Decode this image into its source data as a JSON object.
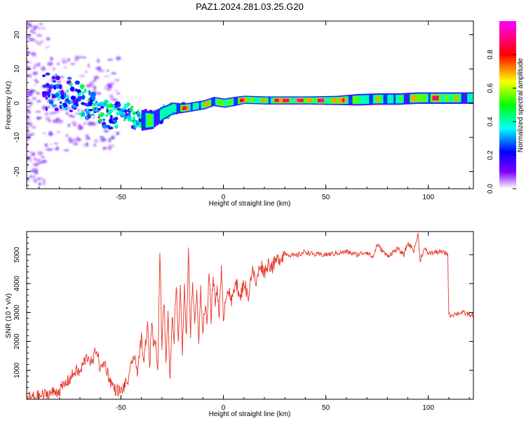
{
  "page_title": "PAZ1.2024.281.03.25.G20",
  "chart_data": [
    {
      "type": "heatmap",
      "title": "PAZ1.2024.281.03.25.G20",
      "xlabel": "Height of straight line (km)",
      "ylabel": "Frequency (Hz)",
      "xlim": [
        -96,
        122
      ],
      "ylim": [
        -25,
        24
      ],
      "x_ticks": [
        -50,
        0,
        50,
        100
      ],
      "y_ticks": [
        -20,
        -10,
        0,
        10,
        20
      ],
      "colorbar": {
        "label": "Normalized spectral amplitude",
        "range": [
          0,
          1
        ],
        "ticks": [
          "0.0",
          "0.2",
          "0.4",
          "0.6",
          "0.8"
        ],
        "tick_values": [
          0.0,
          0.2,
          0.4,
          0.6,
          0.8
        ],
        "colors": [
          "#ffffff",
          "#8000ff",
          "#0000ff",
          "#00ffff",
          "#00ff00",
          "#ffff00",
          "#ff0000",
          "#ff00ff"
        ]
      },
      "ridge": [
        {
          "x": -85,
          "f": 3.5,
          "amp": 0.2,
          "spread": 3.5
        },
        {
          "x": -80,
          "f": 3.0,
          "amp": 0.35,
          "spread": 3.0
        },
        {
          "x": -75,
          "f": 2.5,
          "amp": 0.4,
          "spread": 3.0
        },
        {
          "x": -70,
          "f": 1.0,
          "amp": 0.4,
          "spread": 3.0
        },
        {
          "x": -65,
          "f": -1.0,
          "amp": 0.45,
          "spread": 2.5
        },
        {
          "x": -60,
          "f": -2.5,
          "amp": 0.45,
          "spread": 2.5
        },
        {
          "x": -55,
          "f": -3.5,
          "amp": 0.45,
          "spread": 2.5
        },
        {
          "x": -50,
          "f": -3.0,
          "amp": 0.45,
          "spread": 2.0
        },
        {
          "x": -45,
          "f": -4.0,
          "amp": 0.45,
          "spread": 2.0
        },
        {
          "x": -40,
          "f": -5.0,
          "amp": 0.5,
          "spread": 1.8
        },
        {
          "x": -35,
          "f": -5.0,
          "amp": 0.5,
          "spread": 1.5
        },
        {
          "x": -30,
          "f": -3.0,
          "amp": 0.5,
          "spread": 1.2
        },
        {
          "x": -25,
          "f": -1.5,
          "amp": 0.55,
          "spread": 1.0
        },
        {
          "x": -20,
          "f": -1.5,
          "amp": 0.85,
          "spread": 0.8
        },
        {
          "x": -15,
          "f": -1.0,
          "amp": 0.6,
          "spread": 0.8
        },
        {
          "x": -10,
          "f": -0.5,
          "amp": 0.6,
          "spread": 0.8
        },
        {
          "x": -5,
          "f": 0.5,
          "amp": 0.85,
          "spread": 0.8
        },
        {
          "x": 0,
          "f": 0.0,
          "amp": 0.6,
          "spread": 0.8
        },
        {
          "x": 5,
          "f": 0.5,
          "amp": 0.65,
          "spread": 0.8
        },
        {
          "x": 10,
          "f": 1.0,
          "amp": 0.9,
          "spread": 0.7
        },
        {
          "x": 20,
          "f": 0.8,
          "amp": 0.6,
          "spread": 0.7
        },
        {
          "x": 25,
          "f": 0.8,
          "amp": 1.0,
          "spread": 0.7
        },
        {
          "x": 40,
          "f": 0.8,
          "amp": 0.95,
          "spread": 0.7
        },
        {
          "x": 55,
          "f": 0.8,
          "amp": 0.9,
          "spread": 0.8
        },
        {
          "x": 65,
          "f": 1.0,
          "amp": 0.6,
          "spread": 1.0
        },
        {
          "x": 75,
          "f": 1.2,
          "amp": 0.6,
          "spread": 1.0
        },
        {
          "x": 85,
          "f": 1.2,
          "amp": 0.5,
          "spread": 1.0
        },
        {
          "x": 95,
          "f": 1.5,
          "amp": 0.75,
          "spread": 1.0
        },
        {
          "x": 105,
          "f": 1.5,
          "amp": 0.85,
          "spread": 1.0
        },
        {
          "x": 115,
          "f": 1.5,
          "amp": 0.6,
          "spread": 1.0
        },
        {
          "x": 122,
          "f": 1.5,
          "amp": 0.5,
          "spread": 1.0
        }
      ]
    },
    {
      "type": "line",
      "xlabel": "Height of straight line (km)",
      "ylabel": "SNR (10 * v/v)",
      "xlim": [
        -96,
        122
      ],
      "ylim": [
        0,
        5800
      ],
      "x_ticks": [
        -50,
        0,
        50,
        100
      ],
      "y_ticks": [
        1000,
        2000,
        3000,
        4000,
        5000
      ],
      "line_color": "#e8352a",
      "series": [
        {
          "x": [
            -96,
            -90,
            -85,
            -80,
            -75,
            -72,
            -70,
            -68,
            -66,
            -64,
            -62,
            -60,
            -58,
            -56,
            -55,
            -53,
            -51,
            -50,
            -48,
            -46,
            -45,
            -44,
            -42,
            -40,
            -39,
            -37,
            -36,
            -35,
            -34,
            -33,
            -32,
            -31,
            -30,
            -29,
            -28,
            -27,
            -26,
            -25,
            -24,
            -23,
            -22,
            -21,
            -20,
            -19,
            -18,
            -17,
            -16,
            -15,
            -14,
            -13,
            -12,
            -11,
            -10,
            -9,
            -8,
            -7,
            -6,
            -5,
            -4,
            -3,
            -2,
            -1,
            0,
            2,
            4,
            6,
            8,
            10,
            12,
            14,
            16,
            18,
            20,
            22,
            24,
            26,
            28,
            30,
            35,
            40,
            45,
            50,
            55,
            60,
            65,
            70,
            73,
            75,
            80,
            85,
            88,
            90,
            93,
            95,
            96,
            98,
            100,
            105,
            109,
            109.5,
            110,
            113,
            116,
            119,
            122
          ],
          "values": [
            50,
            100,
            200,
            300,
            700,
            1000,
            900,
            1300,
            1500,
            1200,
            1800,
            1000,
            1300,
            800,
            600,
            350,
            300,
            250,
            500,
            700,
            1200,
            1500,
            1000,
            2100,
            1200,
            2600,
            1000,
            2800,
            1800,
            2200,
            900,
            5250,
            1800,
            3500,
            1400,
            2900,
            600,
            3000,
            2100,
            4100,
            2000,
            4000,
            1600,
            3800,
            2200,
            5100,
            2300,
            4000,
            2700,
            3600,
            1900,
            3700,
            2400,
            3200,
            2600,
            4600,
            2800,
            4300,
            3300,
            3900,
            2900,
            4400,
            2900,
            3900,
            3300,
            4200,
            3400,
            4100,
            3500,
            4500,
            4000,
            4700,
            4400,
            4700,
            4600,
            4800,
            4900,
            5050,
            4950,
            5100,
            5000,
            5000,
            5050,
            5100,
            5000,
            5100,
            4900,
            5350,
            4950,
            5200,
            5000,
            5400,
            5150,
            5700,
            4800,
            5200,
            5050,
            5100,
            5050,
            5000,
            2900,
            2950,
            3000,
            2950,
            2900
          ]
        }
      ]
    }
  ]
}
